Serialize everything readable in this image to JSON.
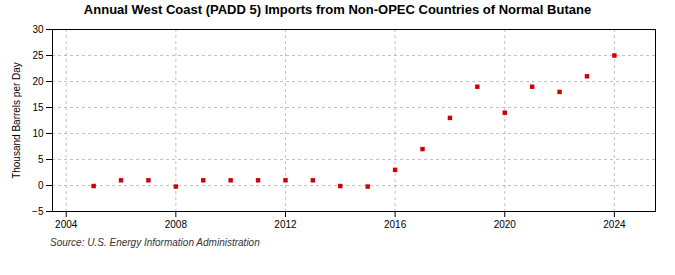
{
  "chart_data": {
    "type": "scatter",
    "title": "Annual West Coast (PADD 5) Imports from Non-OPEC Countries of Normal Butane",
    "ylabel": "Thousand Barrels per Day",
    "source": "Source: U.S. Energy Information Administration",
    "x": [
      2005,
      2006,
      2007,
      2008,
      2009,
      2010,
      2011,
      2012,
      2013,
      2014,
      2015,
      2016,
      2017,
      2018,
      2019,
      2020,
      2021,
      2022,
      2023,
      2024
    ],
    "values": [
      -0.1,
      1.0,
      1.0,
      -0.2,
      1.0,
      1.0,
      1.0,
      1.0,
      1.0,
      -0.1,
      -0.2,
      3.0,
      7.0,
      13.0,
      19.0,
      14.0,
      19.0,
      18.0,
      21.0,
      25.0
    ],
    "color": "#cc0000",
    "marker": "square",
    "xlim": [
      2003.5,
      2025.5
    ],
    "xticks": [
      2004,
      2008,
      2012,
      2016,
      2020,
      2024
    ],
    "ylim": [
      -5,
      30
    ],
    "yticks": [
      -5,
      0,
      5,
      10,
      15,
      20,
      25,
      30
    ],
    "grid": true
  }
}
